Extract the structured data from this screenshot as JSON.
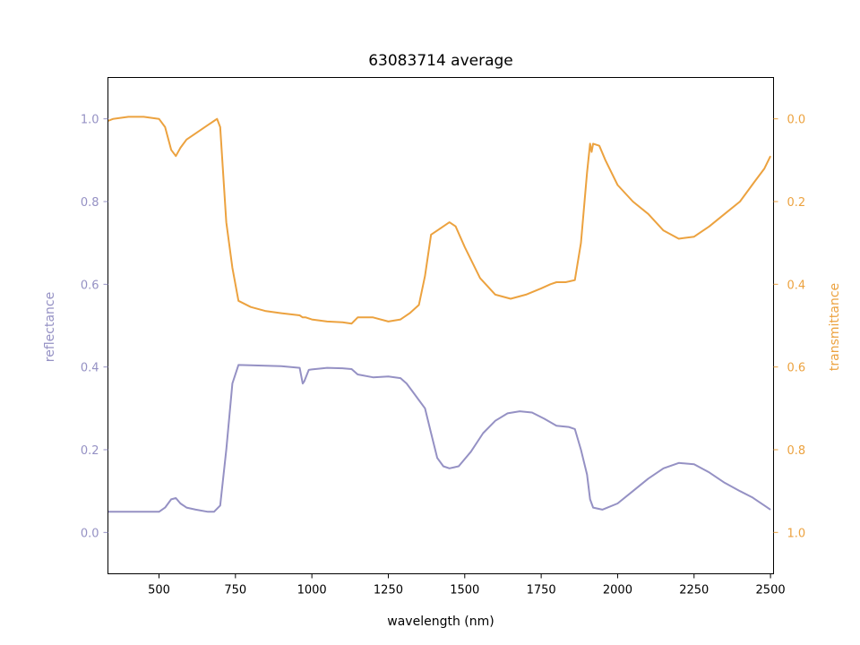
{
  "chart_data": {
    "type": "line",
    "title": "63083714 average",
    "xlabel": "wavelength (nm)",
    "ylabel": "reflectance",
    "y2label": "transmittance",
    "xlim": [
      333,
      2510
    ],
    "ylim": [
      -0.1,
      1.1
    ],
    "y2lim": [
      1.1,
      -0.1
    ],
    "y2_inverted": true,
    "x_ticks": [
      "500",
      "750",
      "1000",
      "1250",
      "1500",
      "1750",
      "2000",
      "2250",
      "2500"
    ],
    "y_ticks": [
      "0.0",
      "0.2",
      "0.4",
      "0.6",
      "0.8",
      "1.0"
    ],
    "y2_ticks": [
      "0.0",
      "0.2",
      "0.4",
      "0.6",
      "0.8",
      "1.0"
    ],
    "grid": false,
    "colors": {
      "reflectance": "#9591c4",
      "transmittance": "#eca23f",
      "axes": "#000000"
    },
    "series": [
      {
        "name": "reflectance",
        "axis": "left",
        "x": [
          333,
          350,
          400,
          450,
          500,
          520,
          540,
          555,
          570,
          590,
          620,
          660,
          680,
          700,
          720,
          740,
          760,
          800,
          850,
          900,
          960,
          970,
          975,
          990,
          1000,
          1050,
          1100,
          1130,
          1150,
          1200,
          1250,
          1290,
          1310,
          1330,
          1350,
          1370,
          1390,
          1410,
          1430,
          1450,
          1480,
          1520,
          1560,
          1600,
          1640,
          1680,
          1720,
          1760,
          1800,
          1840,
          1860,
          1880,
          1900,
          1910,
          1920,
          1950,
          2000,
          2050,
          2100,
          2150,
          2200,
          2250,
          2300,
          2350,
          2400,
          2440,
          2460,
          2480,
          2500
        ],
        "y": [
          0.05,
          0.05,
          0.05,
          0.05,
          0.05,
          0.06,
          0.08,
          0.083,
          0.07,
          0.06,
          0.055,
          0.05,
          0.05,
          0.065,
          0.2,
          0.36,
          0.405,
          0.404,
          0.403,
          0.402,
          0.398,
          0.36,
          0.365,
          0.393,
          0.394,
          0.398,
          0.397,
          0.395,
          0.382,
          0.375,
          0.377,
          0.373,
          0.36,
          0.34,
          0.32,
          0.3,
          0.24,
          0.18,
          0.16,
          0.155,
          0.16,
          0.195,
          0.24,
          0.27,
          0.288,
          0.293,
          0.29,
          0.275,
          0.258,
          0.255,
          0.25,
          0.2,
          0.14,
          0.08,
          0.06,
          0.055,
          0.07,
          0.1,
          0.13,
          0.155,
          0.168,
          0.165,
          0.145,
          0.12,
          0.1,
          0.085,
          0.075,
          0.065,
          0.055
        ]
      },
      {
        "name": "transmittance",
        "axis": "right",
        "x": [
          333,
          350,
          400,
          450,
          500,
          520,
          540,
          555,
          570,
          590,
          620,
          660,
          680,
          690,
          700,
          720,
          740,
          760,
          800,
          850,
          900,
          960,
          970,
          980,
          1000,
          1050,
          1100,
          1130,
          1150,
          1200,
          1250,
          1290,
          1320,
          1350,
          1370,
          1390,
          1410,
          1430,
          1450,
          1470,
          1500,
          1550,
          1600,
          1650,
          1700,
          1750,
          1780,
          1800,
          1830,
          1860,
          1880,
          1900,
          1910,
          1915,
          1920,
          1940,
          1960,
          2000,
          2050,
          2100,
          2150,
          2200,
          2250,
          2300,
          2350,
          2400,
          2450,
          2480,
          2500
        ],
        "y": [
          0.005,
          0.0,
          -0.005,
          -0.005,
          0.0,
          0.02,
          0.075,
          0.09,
          0.07,
          0.05,
          0.035,
          0.015,
          0.005,
          0.0,
          0.02,
          0.25,
          0.36,
          0.44,
          0.455,
          0.465,
          0.47,
          0.475,
          0.48,
          0.48,
          0.485,
          0.49,
          0.492,
          0.495,
          0.48,
          0.48,
          0.49,
          0.485,
          0.47,
          0.45,
          0.38,
          0.28,
          0.27,
          0.26,
          0.25,
          0.26,
          0.31,
          0.385,
          0.425,
          0.435,
          0.425,
          0.41,
          0.4,
          0.395,
          0.395,
          0.39,
          0.3,
          0.13,
          0.06,
          0.08,
          0.06,
          0.065,
          0.1,
          0.16,
          0.2,
          0.23,
          0.27,
          0.29,
          0.285,
          0.26,
          0.23,
          0.2,
          0.15,
          0.12,
          0.09
        ]
      }
    ]
  }
}
